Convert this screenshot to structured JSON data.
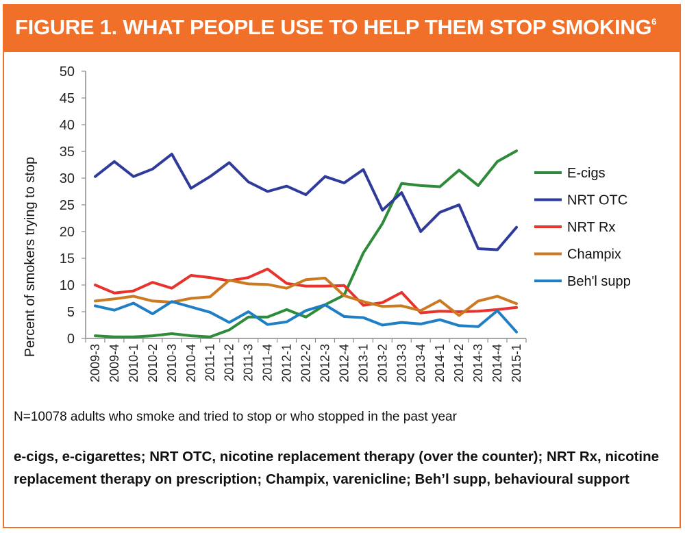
{
  "header": {
    "title": "FIGURE 1. WHAT PEOPLE USE TO HELP THEM STOP SMOKING",
    "superscript": "6"
  },
  "note": "N=10078 adults who smoke and tried to stop or who stopped in the past year",
  "footnote": "e-cigs, e-cigarettes; NRT OTC, nicotine replacement therapy (over the counter); NRT Rx,  nicotine replacement therapy on prescription; Champix, varenicline; Beh’l supp, behavioural support",
  "colors": {
    "banner": "#f0702a"
  },
  "chart_data": {
    "type": "line",
    "title": "",
    "xlabel": "",
    "ylabel": "Percent of smokers trying to stop",
    "ylim": [
      0,
      50
    ],
    "yticks": [
      0,
      5,
      10,
      15,
      20,
      25,
      30,
      35,
      40,
      45,
      50
    ],
    "legend_position": "right",
    "categories": [
      "2009-3",
      "2009-4",
      "2010-1",
      "2010-2",
      "2010-3",
      "2010-4",
      "2011-1",
      "2011-2",
      "2011-3",
      "2011-4",
      "2012-1",
      "2012-2",
      "2012-3",
      "2012-4",
      "2013-1",
      "2013-2",
      "2013-3",
      "2013-4",
      "2014-1",
      "2014-2",
      "2014-3",
      "2014-4",
      "2015-1"
    ],
    "series": [
      {
        "name": "E-cigs",
        "color": "#2e8b3a",
        "values": [
          0.5,
          0.3,
          0.3,
          0.5,
          0.9,
          0.5,
          0.3,
          1.6,
          4.0,
          4.0,
          5.4,
          4.0,
          6.3,
          8.1,
          16.0,
          21.5,
          29.0,
          28.6,
          28.4,
          31.5,
          28.6,
          33.1,
          35.1
        ]
      },
      {
        "name": "NRT OTC",
        "color": "#2f3b9a",
        "values": [
          30.3,
          33.1,
          30.3,
          31.7,
          34.5,
          28.1,
          30.3,
          32.9,
          29.3,
          27.5,
          28.5,
          26.9,
          30.3,
          29.1,
          31.6,
          24.0,
          27.3,
          20.0,
          23.6,
          25.0,
          16.8,
          16.6,
          20.8
        ]
      },
      {
        "name": "NRT Rx",
        "color": "#e8322c",
        "values": [
          10.0,
          8.5,
          8.9,
          10.5,
          9.4,
          11.8,
          11.4,
          10.8,
          11.4,
          13.0,
          10.3,
          9.8,
          9.8,
          9.9,
          6.2,
          6.7,
          8.6,
          4.8,
          5.1,
          5.0,
          5.1,
          5.4,
          5.8
        ]
      },
      {
        "name": "Champix",
        "color": "#cc7a22",
        "values": [
          7.0,
          7.4,
          7.9,
          7.0,
          6.8,
          7.5,
          7.8,
          10.9,
          10.2,
          10.1,
          9.4,
          11.0,
          11.3,
          8.0,
          6.9,
          6.0,
          6.1,
          5.2,
          7.1,
          4.3,
          7.0,
          7.9,
          6.5
        ]
      },
      {
        "name": "Beh'l supp",
        "color": "#1f7fc4",
        "values": [
          6.1,
          5.3,
          6.6,
          4.6,
          6.9,
          5.9,
          4.9,
          3.0,
          5.0,
          2.6,
          3.1,
          5.2,
          6.3,
          4.1,
          3.9,
          2.5,
          3.0,
          2.7,
          3.5,
          2.4,
          2.2,
          5.2,
          1.2
        ]
      }
    ]
  }
}
